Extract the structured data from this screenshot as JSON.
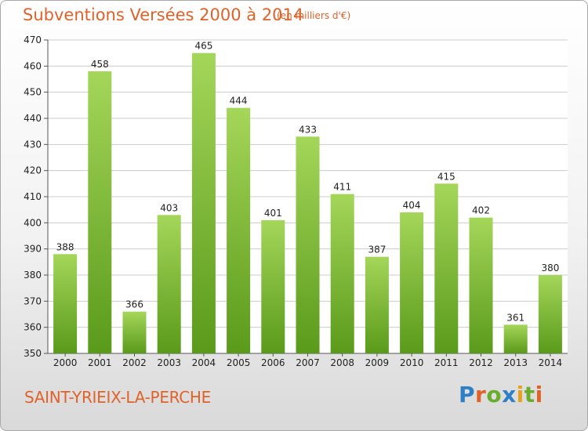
{
  "header": {
    "title": "Subventions Versées 2000 à 2014",
    "subtitle": "(en milliers d'€)"
  },
  "footer": {
    "commune": "SAINT-YRIEIX-LA-PERCHE",
    "logo_text": "Proxiti"
  },
  "colors": {
    "accent": "#e0622a",
    "bar_top": "#a4d65a",
    "bar_bottom": "#5a9a1a",
    "grid": "#cccccc"
  },
  "chart_data": {
    "type": "bar",
    "title": "Subventions Versées 2000 à 2014",
    "subtitle": "(en milliers d'€)",
    "xlabel": "",
    "ylabel": "",
    "categories": [
      "2000",
      "2001",
      "2002",
      "2003",
      "2004",
      "2005",
      "2006",
      "2007",
      "2008",
      "2009",
      "2010",
      "2011",
      "2012",
      "2013",
      "2014"
    ],
    "values": [
      388,
      458,
      366,
      403,
      465,
      444,
      401,
      433,
      411,
      387,
      404,
      415,
      402,
      361,
      380
    ],
    "ylim": [
      350,
      470
    ],
    "yticks": [
      350,
      360,
      370,
      380,
      390,
      400,
      410,
      420,
      430,
      440,
      450,
      460,
      470
    ],
    "grid": true,
    "legend": "none"
  }
}
